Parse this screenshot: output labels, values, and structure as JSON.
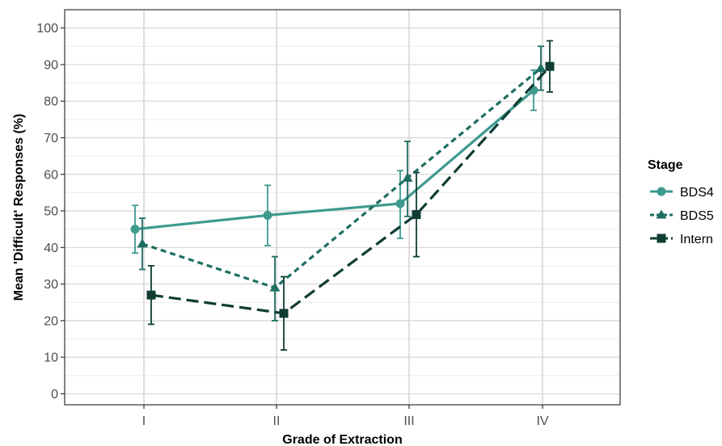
{
  "chart_data": {
    "type": "line",
    "xlabel": "Grade of Extraction",
    "ylabel": "Mean 'Difficult' Responses (%)",
    "categories": [
      "I",
      "II",
      "III",
      "IV"
    ],
    "ylim": [
      -3,
      105
    ],
    "yticks": [
      0,
      10,
      20,
      30,
      40,
      50,
      60,
      70,
      80,
      90,
      100
    ],
    "grid": true,
    "legend": {
      "title": "Stage",
      "position": "right"
    },
    "series": [
      {
        "name": "BDS4",
        "color": "#3d9a8f",
        "dash": "solid",
        "marker": "circle",
        "values": [
          45,
          48.8,
          52,
          83
        ],
        "err_low": [
          38.5,
          40.5,
          42.5,
          77.5
        ],
        "err_high": [
          51.5,
          57,
          61,
          88.5
        ]
      },
      {
        "name": "BDS5",
        "color": "#1f6e62",
        "dash": "dotted",
        "marker": "triangle",
        "values": [
          41,
          29,
          59,
          89
        ],
        "err_low": [
          34,
          20,
          48.5,
          83
        ],
        "err_high": [
          48,
          37.5,
          69,
          95
        ]
      },
      {
        "name": "Intern",
        "color": "#0f3d33",
        "dash": "dashed",
        "marker": "square",
        "values": [
          27,
          22,
          49,
          89.5
        ],
        "err_low": [
          19,
          12,
          37.5,
          82.5
        ],
        "err_high": [
          35,
          32,
          60.5,
          96.5
        ]
      }
    ]
  }
}
